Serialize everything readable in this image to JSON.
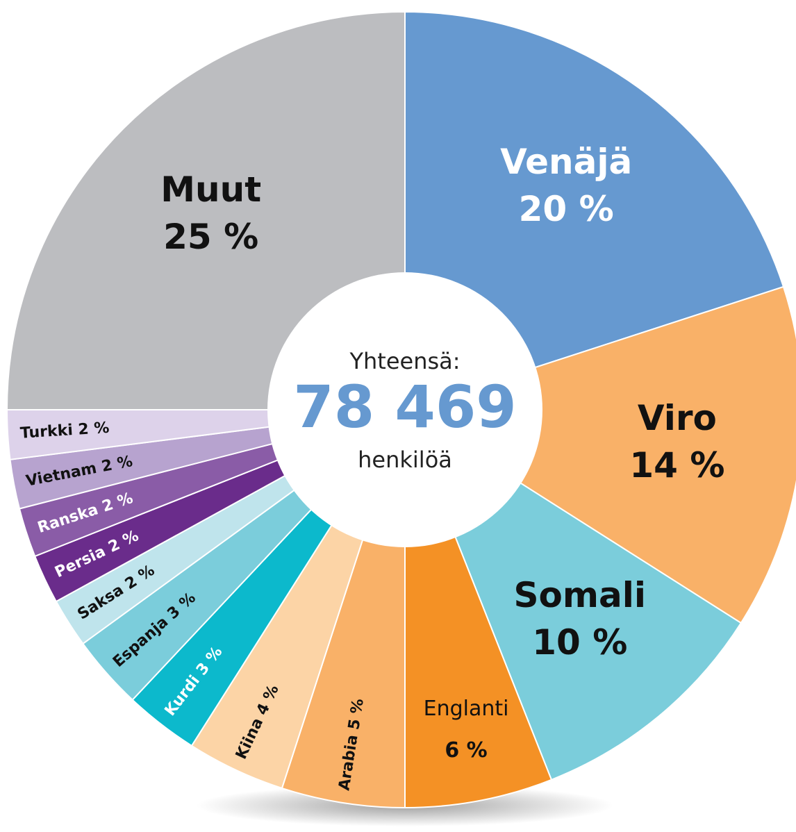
{
  "chart_data": {
    "type": "donut",
    "categories": [
      "Venäjä",
      "Viro",
      "Somali",
      "Englanti",
      "Arabia",
      "Kiina",
      "Kurdi",
      "Espanja",
      "Saksa",
      "Persia",
      "Ranska",
      "Vietnam",
      "Turkki",
      "Muut"
    ],
    "values": [
      20,
      14,
      10,
      6,
      5,
      4,
      3,
      3,
      2,
      2,
      2,
      2,
      2,
      25
    ],
    "value_labels": [
      "20 %",
      "14 %",
      "10 %",
      "6 %",
      "5 %",
      "4 %",
      "3 %",
      "3 %",
      "2 %",
      "2 %",
      "2 %",
      "2 %",
      "2 %",
      "25 %"
    ],
    "colors": [
      "#6699d0",
      "#f9b168",
      "#7bcddb",
      "#f49125",
      "#f9b168",
      "#fcd4a6",
      "#0cb9cc",
      "#7bcddb",
      "#bfe4ec",
      "#6a2c8b",
      "#8a5ca7",
      "#b7a3cf",
      "#ddd2ea",
      "#bcbdc0"
    ],
    "label_colors": [
      "#ffffff",
      "#111111",
      "#111111",
      "#111111",
      "#111111",
      "#111111",
      "#ffffff",
      "#111111",
      "#111111",
      "#ffffff",
      "#ffffff",
      "#111111",
      "#111111",
      "#111111"
    ],
    "center": {
      "heading": "Yhteensä:",
      "total": "78 469",
      "unit": "henkilöä"
    }
  }
}
